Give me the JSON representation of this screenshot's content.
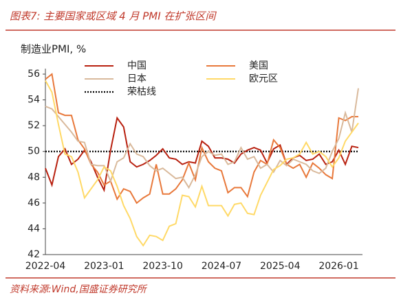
{
  "chart_data": {
    "type": "line",
    "title": "图表7:  主要国家或区域 4 月 PMI 在扩张区间",
    "y_axis_label": "制造业PMI, %",
    "source": "资料来源:Wind,国盛证券研究所",
    "categories": [
      "2022-04",
      null,
      null,
      null,
      null,
      null,
      null,
      null,
      null,
      "2023-01",
      null,
      null,
      null,
      null,
      null,
      null,
      null,
      null,
      "2023-10",
      null,
      null,
      null,
      null,
      null,
      null,
      null,
      null,
      "2024-07",
      null,
      null,
      null,
      null,
      null,
      null,
      null,
      null,
      "2025-04",
      null,
      null,
      null,
      null,
      null,
      null,
      null,
      null,
      "2026-01",
      null,
      null,
      null
    ],
    "ylim": [
      42,
      56
    ],
    "yticks": [
      42,
      44,
      46,
      48,
      50,
      52,
      54,
      56
    ],
    "series": [
      {
        "name": "中国",
        "color": "#b8200f",
        "values": [
          48.7,
          47.4,
          49.6,
          50.2,
          49.0,
          49.4,
          50.1,
          49.2,
          48.0,
          47.0,
          50.1,
          52.6,
          51.9,
          49.2,
          48.8,
          49.0,
          49.3,
          49.7,
          50.2,
          49.5,
          49.4,
          49.0,
          49.2,
          49.1,
          50.8,
          50.4,
          49.5,
          49.5,
          49.4,
          49.1,
          49.8,
          50.1,
          50.3,
          50.1,
          49.1,
          50.2,
          50.5,
          49.0,
          49.5,
          49.7,
          49.3,
          49.4,
          49.8,
          49.0,
          49.2,
          50.1,
          49.0,
          50.4,
          50.3
        ]
      },
      {
        "name": "美国",
        "color": "#e8783a",
        "values": [
          55.6,
          56.0,
          53.0,
          52.8,
          52.8,
          50.9,
          50.2,
          49.0,
          48.4,
          47.4,
          47.7,
          46.3,
          47.1,
          46.9,
          46.0,
          46.4,
          46.7,
          49.0,
          46.7,
          46.7,
          47.1,
          47.8,
          49.1,
          47.8,
          50.3,
          49.2,
          48.7,
          48.5,
          46.8,
          47.2,
          47.2,
          46.5,
          48.4,
          49.3,
          49.0,
          50.9,
          50.3,
          49.0,
          48.7,
          49.0,
          48.0,
          49.1,
          48.7,
          48.2,
          47.9,
          52.6,
          52.4,
          52.7,
          52.7
        ]
      },
      {
        "name": "日本",
        "color": "#d9b99b",
        "values": [
          53.5,
          53.3,
          52.7,
          52.1,
          51.5,
          50.8,
          50.7,
          49.0,
          48.9,
          48.9,
          47.7,
          49.2,
          49.5,
          50.6,
          49.8,
          49.6,
          48.9,
          48.5,
          48.7,
          48.3,
          47.9,
          48.0,
          47.2,
          48.2,
          49.6,
          50.0,
          49.7,
          49.8,
          49.0,
          49.2,
          50.3,
          49.4,
          49.6,
          48.7,
          49.0,
          48.4,
          49.3,
          48.9,
          49.4,
          49.2,
          49.0,
          48.5,
          48.3,
          48.7,
          50.0,
          51.0,
          53.0,
          51.5,
          54.9
        ]
      },
      {
        "name": "欧元区",
        "color": "#ffd966",
        "values": [
          55.5,
          54.6,
          52.1,
          49.8,
          49.6,
          48.4,
          46.4,
          47.1,
          47.8,
          48.8,
          48.5,
          47.3,
          45.8,
          44.8,
          43.4,
          42.7,
          43.5,
          43.4,
          43.1,
          44.2,
          44.4,
          46.6,
          46.5,
          45.7,
          47.3,
          45.8,
          45.8,
          45.8,
          45.0,
          45.9,
          46.0,
          45.2,
          45.1,
          46.6,
          47.6,
          48.6,
          48.9,
          49.4,
          49.5,
          49.8,
          50.7,
          49.8,
          50.0,
          49.6,
          48.8,
          49.5,
          50.8,
          51.5,
          52.2
        ]
      }
    ],
    "reference_line": {
      "name": "荣枯线",
      "value": 50,
      "color": "#000000"
    }
  }
}
